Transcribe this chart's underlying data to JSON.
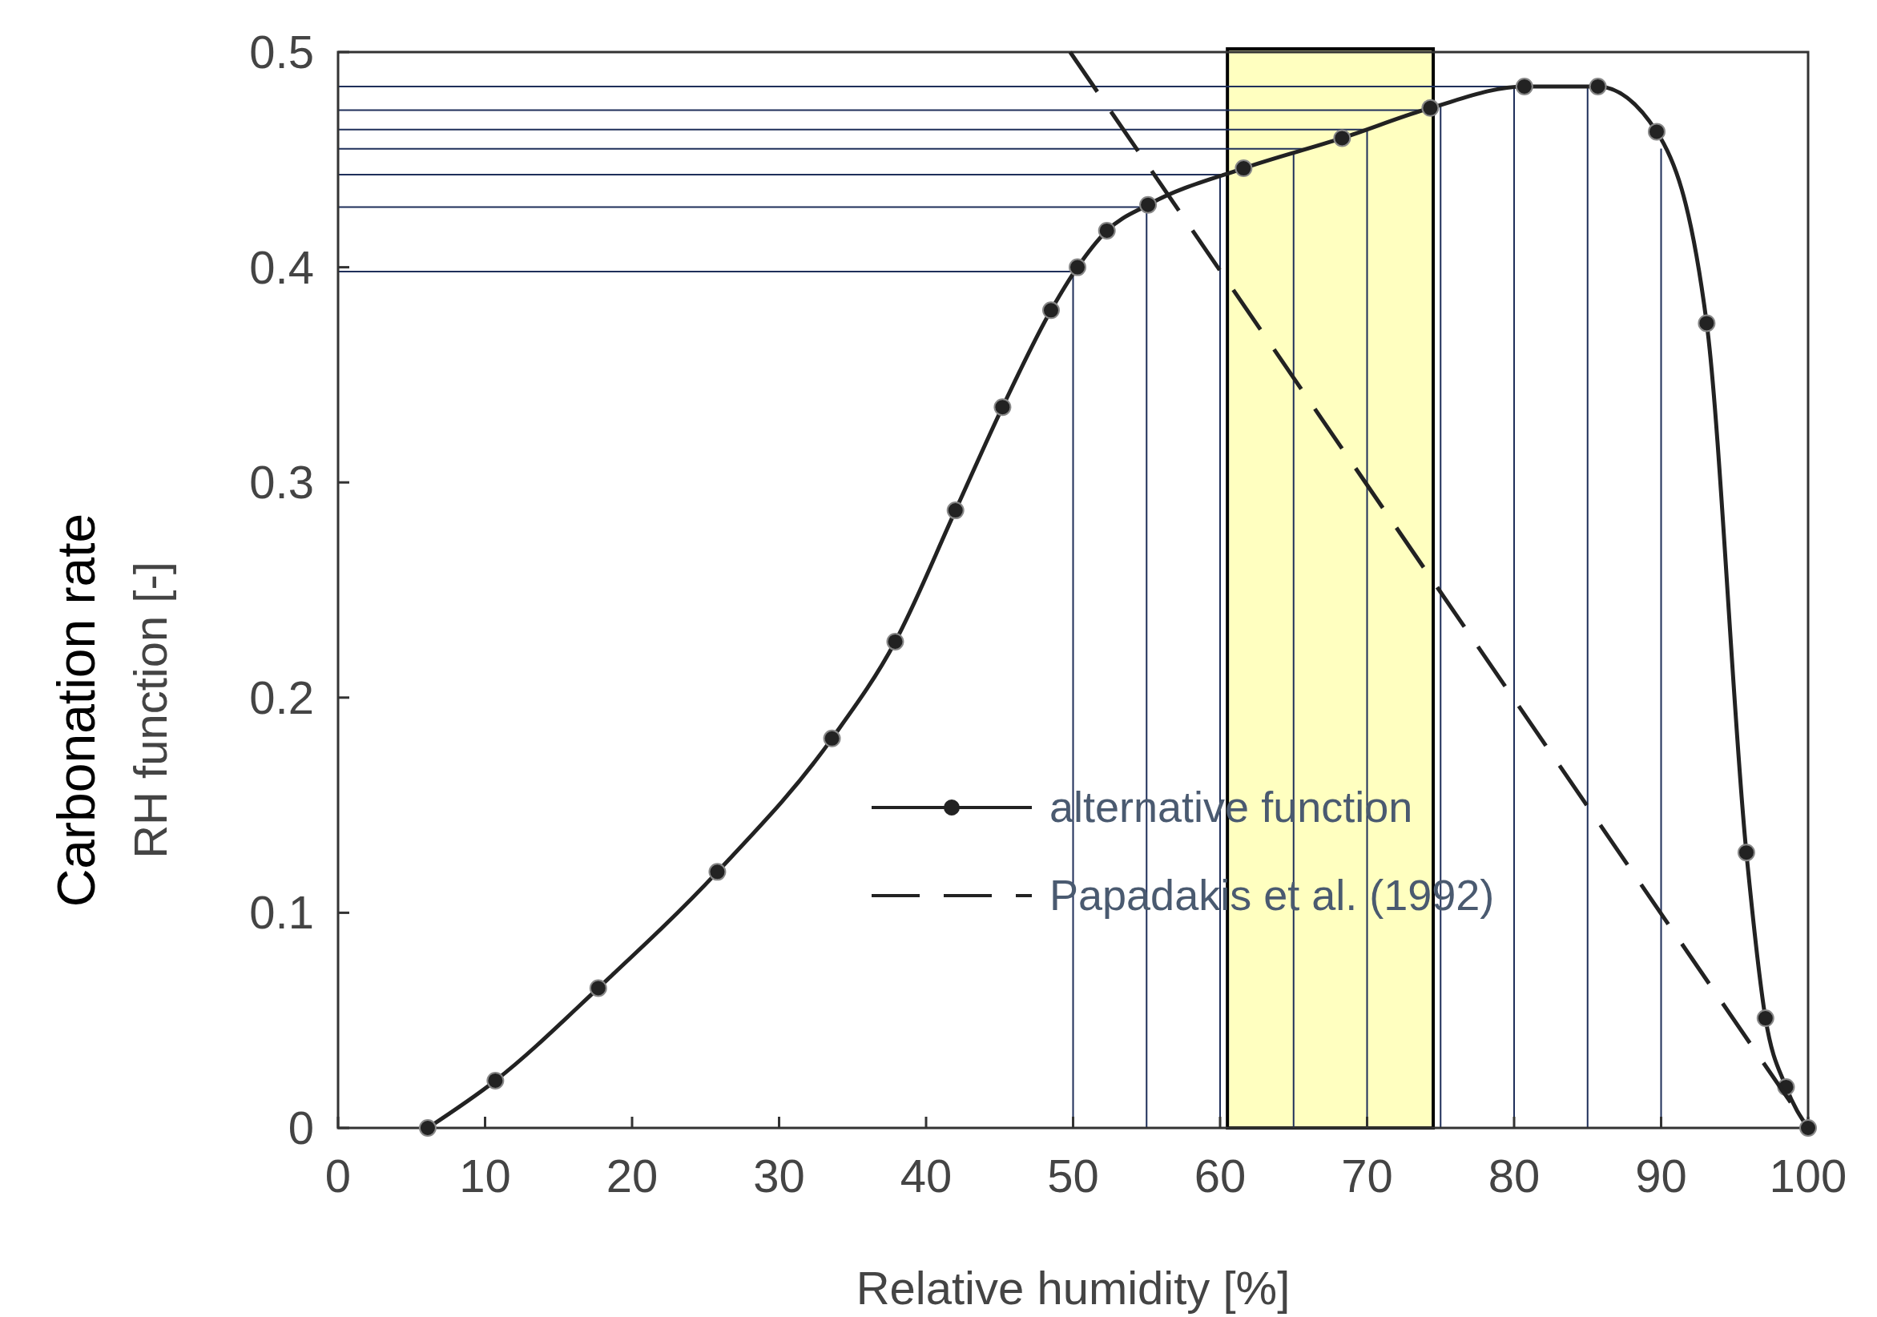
{
  "chart_data": {
    "type": "line",
    "xlabel": "Relative humidity [%]",
    "ylabel": "Carbonation rate\nRH function [-]",
    "xlim": [
      0,
      100
    ],
    "ylim": [
      0,
      0.5
    ],
    "xticks": [
      0,
      10,
      20,
      30,
      40,
      50,
      60,
      70,
      80,
      90,
      100
    ],
    "yticks": [
      0,
      0.1,
      0.2,
      0.3,
      0.4,
      0.5
    ],
    "grid": false,
    "legend": "bottom right",
    "series": [
      {
        "name": "alternative function",
        "color": "#222222",
        "marker": "circle",
        "line_style": "solid",
        "x": [
          6.1,
          10.7,
          17.7,
          25.8,
          33.6,
          37.9,
          42.0,
          45.2,
          48.5,
          50.3,
          52.3,
          55.1,
          61.6,
          68.3,
          74.3,
          80.7,
          85.7,
          89.7,
          93.1,
          95.8,
          97.1,
          98.5,
          100
        ],
        "values": [
          0,
          0.022,
          0.065,
          0.119,
          0.181,
          0.226,
          0.287,
          0.335,
          0.38,
          0.4,
          0.417,
          0.429,
          0.446,
          0.46,
          0.474,
          0.484,
          0.484,
          0.463,
          0.374,
          0.128,
          0.051,
          0.019,
          0
        ]
      },
      {
        "name": "Papadakis et al. (1992)",
        "color": "#222222",
        "marker": "none",
        "line_style": "dashed",
        "x": [
          49.8,
          100
        ],
        "values": [
          0.5,
          0
        ]
      }
    ],
    "bands": [
      {
        "axis": "x",
        "from": 60.5,
        "to": 74.5,
        "color": "#ffffc0"
      }
    ],
    "ref_lines": [
      {
        "axis": "x",
        "value": 50,
        "color": "#1f2f5a"
      },
      {
        "axis": "x",
        "value": 55,
        "color": "#1f2f5a"
      },
      {
        "axis": "x",
        "value": 60,
        "color": "#1f2f5a"
      },
      {
        "axis": "x",
        "value": 65,
        "color": "#1f2f5a"
      },
      {
        "axis": "x",
        "value": 70,
        "color": "#1f2f5a"
      },
      {
        "axis": "x",
        "value": 75,
        "color": "#1f2f5a"
      },
      {
        "axis": "x",
        "value": 80,
        "color": "#1f2f5a"
      },
      {
        "axis": "x",
        "value": 85,
        "color": "#1f2f5a"
      },
      {
        "axis": "x",
        "value": 90,
        "color": "#1f2f5a"
      },
      {
        "axis": "y",
        "value": 0.398,
        "color": "#1f2f5a"
      },
      {
        "axis": "y",
        "value": 0.428,
        "color": "#1f2f5a"
      },
      {
        "axis": "y",
        "value": 0.443,
        "color": "#1f2f5a"
      },
      {
        "axis": "y",
        "value": 0.455,
        "color": "#1f2f5a"
      },
      {
        "axis": "y",
        "value": 0.464,
        "color": "#1f2f5a"
      },
      {
        "axis": "y",
        "value": 0.473,
        "color": "#1f2f5a"
      },
      {
        "axis": "y",
        "value": 0.484,
        "color": "#1f2f5a"
      }
    ]
  }
}
